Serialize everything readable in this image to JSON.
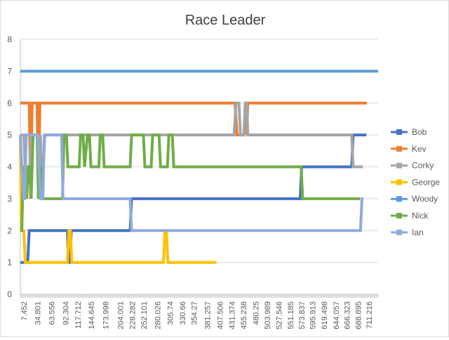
{
  "chart_data": {
    "type": "line",
    "title": "Race Leader",
    "xlabel": "",
    "ylabel": "",
    "ylim": [
      0,
      8
    ],
    "yticks": [
      "0",
      "1",
      "2",
      "3",
      "4",
      "5",
      "6",
      "7",
      "8"
    ],
    "xlim": [
      0,
      730
    ],
    "xticks": [
      {
        "v": 7.452,
        "label": "7.452"
      },
      {
        "v": 34.801,
        "label": "34.801"
      },
      {
        "v": 63.556,
        "label": "63.556"
      },
      {
        "v": 92.304,
        "label": "92.304"
      },
      {
        "v": 117.712,
        "label": "117.712"
      },
      {
        "v": 144.645,
        "label": "144.645"
      },
      {
        "v": 173.998,
        "label": "173.998"
      },
      {
        "v": 204.001,
        "label": "204.001"
      },
      {
        "v": 228.282,
        "label": "228.282"
      },
      {
        "v": 252.101,
        "label": "252.101"
      },
      {
        "v": 280.026,
        "label": "280.026"
      },
      {
        "v": 305.74,
        "label": "305.74"
      },
      {
        "v": 330.66,
        "label": "330.66"
      },
      {
        "v": 354.27,
        "label": "354.27"
      },
      {
        "v": 381.257,
        "label": "381.257"
      },
      {
        "v": 407.506,
        "label": "407.506"
      },
      {
        "v": 431.374,
        "label": "431.374"
      },
      {
        "v": 455.238,
        "label": "455.238"
      },
      {
        "v": 480.25,
        "label": "480.25"
      },
      {
        "v": 503.989,
        "label": "503.989"
      },
      {
        "v": 527.546,
        "label": "527.546"
      },
      {
        "v": 551.185,
        "label": "551.185"
      },
      {
        "v": 573.837,
        "label": "573.837"
      },
      {
        "v": 595.913,
        "label": "595.913"
      },
      {
        "v": 619.498,
        "label": "619.498"
      },
      {
        "v": 644.057,
        "label": "644.057"
      },
      {
        "v": 666.323,
        "label": "666.323"
      },
      {
        "v": 688.895,
        "label": "688.895"
      },
      {
        "v": 711.216,
        "label": "711.216"
      }
    ],
    "grid": "horizontal",
    "legend_position": "right",
    "series": [
      {
        "name": "Bob",
        "color": "#4472c4",
        "points": [
          [
            0,
            1
          ],
          [
            15,
            1
          ],
          [
            18,
            2
          ],
          [
            96,
            2
          ],
          [
            98,
            1
          ],
          [
            101,
            1
          ],
          [
            104,
            2
          ],
          [
            224,
            2
          ],
          [
            227,
            3
          ],
          [
            571,
            3
          ],
          [
            574,
            4
          ],
          [
            676,
            4
          ],
          [
            679,
            5
          ],
          [
            706,
            5
          ]
        ]
      },
      {
        "name": "Kev",
        "color": "#ed7d31",
        "points": [
          [
            0,
            6
          ],
          [
            18,
            6
          ],
          [
            21,
            3
          ],
          [
            24,
            6
          ],
          [
            34,
            6
          ],
          [
            37,
            3
          ],
          [
            40,
            6
          ],
          [
            438,
            6
          ],
          [
            442,
            5
          ],
          [
            456,
            5
          ],
          [
            459,
            6
          ],
          [
            462,
            5
          ],
          [
            464,
            6
          ],
          [
            707,
            6
          ]
        ]
      },
      {
        "name": "Corky",
        "color": "#a5a5a5",
        "points": [
          [
            0,
            5
          ],
          [
            7,
            5
          ],
          [
            10,
            4
          ],
          [
            19,
            4
          ],
          [
            22,
            5
          ],
          [
            34,
            5
          ],
          [
            37,
            4
          ],
          [
            41,
            5
          ],
          [
            43,
            4
          ],
          [
            47,
            4
          ],
          [
            50,
            5
          ],
          [
            436,
            5
          ],
          [
            440,
            6
          ],
          [
            446,
            6
          ],
          [
            449,
            5
          ],
          [
            456,
            5
          ],
          [
            459,
            6
          ],
          [
            462,
            6
          ],
          [
            464,
            5
          ],
          [
            676,
            5
          ],
          [
            679,
            4
          ],
          [
            699,
            4
          ]
        ]
      },
      {
        "name": "George",
        "color": "#ffc000",
        "points": [
          [
            0,
            5
          ],
          [
            2,
            2
          ],
          [
            7,
            2
          ],
          [
            10,
            1
          ],
          [
            15,
            1
          ],
          [
            18,
            1
          ],
          [
            96,
            1
          ],
          [
            99,
            2
          ],
          [
            102,
            2
          ],
          [
            105,
            1
          ],
          [
            292,
            1
          ],
          [
            295,
            2
          ],
          [
            298,
            2
          ],
          [
            301,
            1
          ],
          [
            400,
            1
          ]
        ]
      },
      {
        "name": "Woody",
        "color": "#5b9bd5",
        "points": [
          [
            0,
            7
          ],
          [
            730,
            7
          ]
        ]
      },
      {
        "name": "Nick",
        "color": "#70ad47",
        "points": [
          [
            0,
            2
          ],
          [
            3,
            2
          ],
          [
            6,
            4
          ],
          [
            10,
            4
          ],
          [
            13,
            3
          ],
          [
            16,
            4
          ],
          [
            19,
            4
          ],
          [
            22,
            3
          ],
          [
            26,
            5
          ],
          [
            34,
            5
          ],
          [
            37,
            3
          ],
          [
            42,
            4
          ],
          [
            46,
            3
          ],
          [
            55,
            3
          ],
          [
            86,
            3
          ],
          [
            89,
            5
          ],
          [
            94,
            5
          ],
          [
            97,
            4
          ],
          [
            120,
            4
          ],
          [
            123,
            5
          ],
          [
            128,
            5
          ],
          [
            131,
            4
          ],
          [
            137,
            5
          ],
          [
            141,
            5
          ],
          [
            144,
            4
          ],
          [
            160,
            4
          ],
          [
            163,
            5
          ],
          [
            168,
            5
          ],
          [
            171,
            4
          ],
          [
            224,
            4
          ],
          [
            227,
            5
          ],
          [
            251,
            5
          ],
          [
            254,
            4
          ],
          [
            267,
            4
          ],
          [
            270,
            5
          ],
          [
            283,
            5
          ],
          [
            286,
            4
          ],
          [
            300,
            4
          ],
          [
            303,
            5
          ],
          [
            310,
            5
          ],
          [
            313,
            4
          ],
          [
            573,
            4
          ],
          [
            576,
            3
          ],
          [
            693,
            3
          ]
        ]
      },
      {
        "name": "Ian",
        "color": "#8faadc",
        "points": [
          [
            0,
            5
          ],
          [
            3,
            4
          ],
          [
            7,
            3
          ],
          [
            9,
            3
          ],
          [
            12,
            5
          ],
          [
            35,
            5
          ],
          [
            38,
            4
          ],
          [
            41,
            3
          ],
          [
            46,
            3
          ],
          [
            49,
            5
          ],
          [
            84,
            5
          ],
          [
            87,
            3
          ],
          [
            224,
            3
          ],
          [
            227,
            2
          ],
          [
            694,
            2
          ],
          [
            697,
            3
          ],
          [
            700,
            3
          ]
        ]
      }
    ]
  }
}
